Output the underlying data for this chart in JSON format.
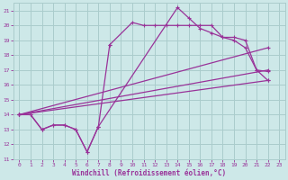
{
  "xlabel": "Windchill (Refroidissement éolien,°C)",
  "bg_color": "#cde8e8",
  "grid_color": "#aacccc",
  "line_color": "#993399",
  "xlim": [
    -0.5,
    23.5
  ],
  "ylim": [
    11,
    21.5
  ],
  "yticks": [
    11,
    12,
    13,
    14,
    15,
    16,
    17,
    18,
    19,
    20,
    21
  ],
  "xticks": [
    0,
    1,
    2,
    3,
    4,
    5,
    6,
    7,
    8,
    9,
    10,
    11,
    12,
    13,
    14,
    15,
    16,
    17,
    18,
    19,
    20,
    21,
    22,
    23
  ],
  "line1_x": [
    0,
    1,
    2,
    3,
    4,
    5,
    6,
    7,
    8
  ],
  "line1_y": [
    14,
    14,
    13,
    13.3,
    13.3,
    13,
    11.5,
    13.2,
    18.7
  ],
  "line1b_x": [
    8,
    10,
    11,
    12,
    13,
    14,
    15,
    16,
    17,
    18,
    19,
    20,
    21,
    22
  ],
  "line1b_y": [
    18.7,
    20.2,
    20.0,
    20.0,
    20.0,
    20.0,
    20.0,
    20.0,
    20.0,
    19.2,
    19.2,
    19.0,
    17.0,
    16.3
  ],
  "line2_x": [
    0,
    1,
    2,
    3,
    4,
    5,
    6,
    7
  ],
  "line2_y": [
    14,
    14,
    13,
    13.3,
    13.3,
    13,
    11.5,
    13.2
  ],
  "line2b_x": [
    7,
    14,
    15,
    16,
    17,
    18,
    19,
    20,
    21,
    22
  ],
  "line2b_y": [
    13.2,
    21.2,
    20.5,
    19.8,
    19.5,
    19.2,
    19.0,
    18.5,
    17.0,
    16.9
  ],
  "straight_lines": [
    {
      "x": [
        0,
        22
      ],
      "y": [
        14,
        16.3
      ]
    },
    {
      "x": [
        0,
        22
      ],
      "y": [
        14,
        17.0
      ]
    },
    {
      "x": [
        0,
        22
      ],
      "y": [
        14,
        18.5
      ]
    }
  ]
}
